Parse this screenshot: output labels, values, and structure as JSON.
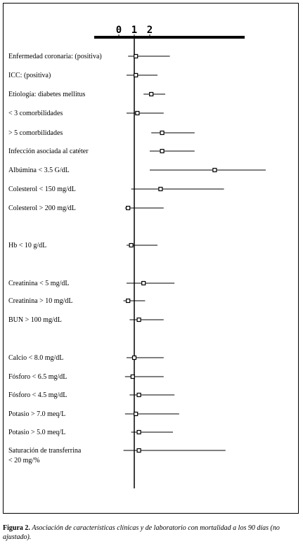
{
  "chart_data": {
    "type": "forest",
    "title": "",
    "xlabel": "",
    "ylabel": "",
    "x_ticks": [
      "0",
      "1",
      "2"
    ],
    "reference_line": 1,
    "xlim": [
      -1.3,
      6.1
    ],
    "rows": [
      {
        "label": "Enfermedad coronaria: (positiva)",
        "estimate": 1.1,
        "ci_low": 0.6,
        "ci_high": 3.3
      },
      {
        "label": "ICC: (positiva)",
        "estimate": 1.1,
        "ci_low": 0.5,
        "ci_high": 2.5
      },
      {
        "label": "Etiología: diabetes mellitus",
        "estimate": 2.1,
        "ci_low": 1.6,
        "ci_high": 3.0
      },
      {
        "label": "< 3 comorbilidades",
        "estimate": 1.2,
        "ci_low": 0.5,
        "ci_high": 2.9
      },
      {
        "label": "> 5 comorbilidades",
        "estimate": 2.8,
        "ci_low": 2.1,
        "ci_high": 4.9
      },
      {
        "label": "Infección asociada al catéter",
        "estimate": 2.8,
        "ci_low": 2.0,
        "ci_high": 4.9
      },
      {
        "label": "Albúmina < 3.5 G/dL",
        "estimate": 6.2,
        "ci_low": 2.0,
        "ci_high": 9.5
      },
      {
        "label": "Colesterol < 150 mg/dL",
        "estimate": 2.7,
        "ci_low": 0.8,
        "ci_high": 6.8
      },
      {
        "label": "Colesterol > 200 mg/dL",
        "estimate": 0.6,
        "ci_low": 0.4,
        "ci_high": 2.9
      },
      {
        "label": "Hb < 10 g/dL",
        "estimate": 0.8,
        "ci_low": 0.5,
        "ci_high": 2.5
      },
      {
        "label": "Creatinina < 5 mg/dL",
        "estimate": 1.6,
        "ci_low": 0.5,
        "ci_high": 3.6
      },
      {
        "label": "Creatinina > 10 mg/dL",
        "estimate": 0.6,
        "ci_low": 0.3,
        "ci_high": 1.7
      },
      {
        "label": "BUN > 100 mg/dL",
        "estimate": 1.3,
        "ci_low": 0.7,
        "ci_high": 2.9
      },
      {
        "label": "Calcio < 8.0 mg/dL",
        "estimate": 1.0,
        "ci_low": 0.5,
        "ci_high": 2.9
      },
      {
        "label": "Fósforo < 6.5 mg/dL",
        "estimate": 0.9,
        "ci_low": 0.4,
        "ci_high": 2.9
      },
      {
        "label": "Fósforo < 4.5 mg/dL",
        "estimate": 1.3,
        "ci_low": 0.7,
        "ci_high": 3.6
      },
      {
        "label": "Potasio > 7.0 meq/L",
        "estimate": 1.1,
        "ci_low": 0.4,
        "ci_high": 3.9
      },
      {
        "label": "Potasio > 5.0 meq/L",
        "estimate": 1.3,
        "ci_low": 0.8,
        "ci_high": 3.5
      },
      {
        "label": "Saturación de transferrina < 20 mg/%",
        "label_lines": [
          "Saturación de transferrina",
          "< 20 mg/%"
        ],
        "estimate": 1.3,
        "ci_low": 0.3,
        "ci_high": 6.9
      }
    ]
  },
  "caption": {
    "label": "Figura 2.",
    "text": "Asociación de características clínicas y de laboratorio con mortalidad a los 90 días (no ajustado)."
  }
}
